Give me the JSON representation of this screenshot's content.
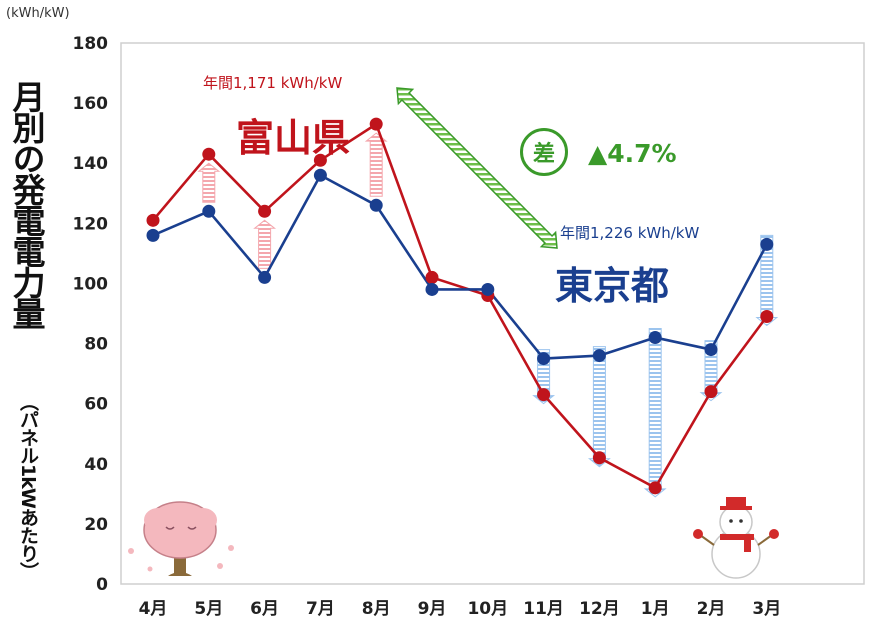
{
  "chart_data": {
    "type": "line",
    "y_unit": "(kWh/kW)",
    "ylabel": "月別の発電電力量",
    "ylabel_sub": "（パネル1kWあたり）",
    "ylim": [
      0,
      180
    ],
    "yticks": [
      "0",
      "20",
      "40",
      "60",
      "80",
      "100",
      "120",
      "140",
      "160",
      "180"
    ],
    "categories": [
      "4月",
      "5月",
      "6月",
      "7月",
      "8月",
      "9月",
      "10月",
      "11月",
      "12月",
      "1月",
      "2月",
      "3月"
    ],
    "grid": false,
    "legend": "none",
    "series": [
      {
        "name": "富山県",
        "color": "#c0141c",
        "values": [
          121,
          143,
          124,
          141,
          153,
          102,
          96,
          63,
          42,
          32,
          64,
          89
        ]
      },
      {
        "name": "東京都",
        "color": "#1a3f8f",
        "values": [
          116,
          124,
          102,
          136,
          126,
          98,
          98,
          75,
          76,
          82,
          78,
          113
        ]
      }
    ],
    "annotations": {
      "toyama_annual": "年間1,171 kWh/kW",
      "tokyo_annual": "年間1,226 kWh/kW",
      "diff_badge": "差",
      "diff_value": "▲4.7%",
      "diff_color": "#3a9a2a"
    }
  }
}
